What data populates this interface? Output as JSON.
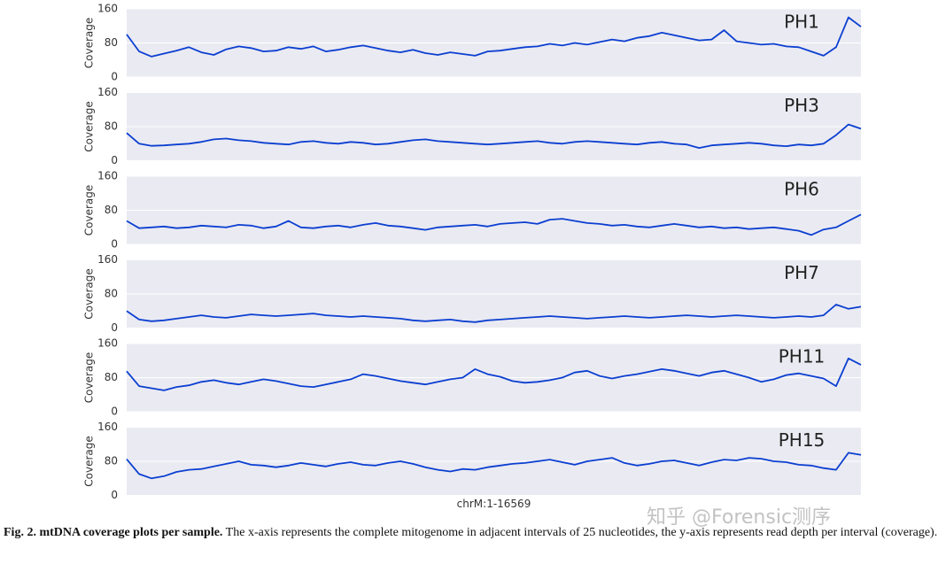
{
  "chart_data": [
    {
      "type": "line",
      "title": "PH1",
      "ylabel": "Coverage",
      "ylim": [
        0,
        160
      ],
      "yticks": [
        0,
        80,
        160
      ],
      "grid": true,
      "color": "#0b3fd1",
      "values": [
        100,
        60,
        48,
        55,
        62,
        70,
        58,
        52,
        65,
        72,
        68,
        60,
        62,
        70,
        66,
        72,
        60,
        64,
        70,
        74,
        68,
        62,
        58,
        64,
        56,
        52,
        58,
        54,
        50,
        60,
        62,
        66,
        70,
        72,
        78,
        74,
        80,
        76,
        82,
        88,
        84,
        92,
        96,
        104,
        98,
        92,
        86,
        88,
        110,
        84,
        80,
        76,
        78,
        72,
        70,
        60,
        50,
        70,
        140,
        118
      ]
    },
    {
      "type": "line",
      "title": "PH3",
      "ylabel": "Coverage",
      "ylim": [
        0,
        160
      ],
      "yticks": [
        0,
        80,
        160
      ],
      "grid": true,
      "color": "#0b3fd1",
      "values": [
        65,
        40,
        35,
        36,
        38,
        40,
        44,
        50,
        52,
        48,
        46,
        42,
        40,
        38,
        44,
        46,
        42,
        40,
        44,
        42,
        38,
        40,
        44,
        48,
        50,
        46,
        44,
        42,
        40,
        38,
        40,
        42,
        44,
        46,
        42,
        40,
        44,
        46,
        44,
        42,
        40,
        38,
        42,
        44,
        40,
        38,
        30,
        36,
        38,
        40,
        42,
        40,
        36,
        34,
        38,
        36,
        40,
        60,
        85,
        75
      ]
    },
    {
      "type": "line",
      "title": "PH6",
      "ylabel": "Coverage",
      "ylim": [
        0,
        160
      ],
      "yticks": [
        0,
        80,
        160
      ],
      "grid": true,
      "color": "#0b3fd1",
      "values": [
        55,
        38,
        40,
        42,
        38,
        40,
        44,
        42,
        40,
        46,
        44,
        38,
        42,
        55,
        40,
        38,
        42,
        44,
        40,
        46,
        50,
        44,
        42,
        38,
        34,
        40,
        42,
        44,
        46,
        42,
        48,
        50,
        52,
        48,
        58,
        60,
        55,
        50,
        48,
        44,
        46,
        42,
        40,
        44,
        48,
        44,
        40,
        42,
        38,
        40,
        36,
        38,
        40,
        36,
        32,
        22,
        35,
        40,
        55,
        70
      ]
    },
    {
      "type": "line",
      "title": "PH7",
      "ylabel": "Coverage",
      "ylim": [
        0,
        160
      ],
      "yticks": [
        0,
        80,
        160
      ],
      "grid": true,
      "color": "#0b3fd1",
      "values": [
        40,
        20,
        16,
        18,
        22,
        26,
        30,
        26,
        24,
        28,
        32,
        30,
        28,
        30,
        32,
        34,
        30,
        28,
        26,
        28,
        26,
        24,
        22,
        18,
        16,
        18,
        20,
        16,
        14,
        18,
        20,
        22,
        24,
        26,
        28,
        26,
        24,
        22,
        24,
        26,
        28,
        26,
        24,
        26,
        28,
        30,
        28,
        26,
        28,
        30,
        28,
        26,
        24,
        26,
        28,
        26,
        30,
        55,
        45,
        50
      ]
    },
    {
      "type": "line",
      "title": "PH11",
      "ylabel": "Coverage",
      "ylim": [
        0,
        160
      ],
      "yticks": [
        0,
        80,
        160
      ],
      "grid": true,
      "color": "#0b3fd1",
      "values": [
        95,
        60,
        55,
        50,
        58,
        62,
        70,
        74,
        68,
        64,
        70,
        76,
        72,
        66,
        60,
        58,
        64,
        70,
        76,
        88,
        84,
        78,
        72,
        68,
        64,
        70,
        76,
        80,
        100,
        88,
        82,
        72,
        68,
        70,
        74,
        80,
        92,
        96,
        84,
        78,
        84,
        88,
        94,
        100,
        96,
        90,
        84,
        92,
        96,
        88,
        80,
        70,
        76,
        86,
        90,
        84,
        78,
        60,
        125,
        110
      ]
    },
    {
      "type": "line",
      "title": "PH15",
      "ylabel": "Coverage",
      "ylim": [
        0,
        160
      ],
      "yticks": [
        0,
        80,
        160
      ],
      "grid": true,
      "color": "#0b3fd1",
      "xlabel": "chrM:1-16569",
      "values": [
        85,
        50,
        40,
        45,
        55,
        60,
        62,
        68,
        74,
        80,
        72,
        70,
        66,
        70,
        76,
        72,
        68,
        74,
        78,
        72,
        70,
        76,
        80,
        74,
        66,
        60,
        56,
        62,
        60,
        66,
        70,
        74,
        76,
        80,
        84,
        78,
        72,
        80,
        84,
        88,
        76,
        70,
        74,
        80,
        82,
        76,
        70,
        78,
        84,
        82,
        88,
        86,
        80,
        78,
        72,
        70,
        64,
        60,
        100,
        95
      ]
    }
  ],
  "caption": {
    "label": "Fig. 2.  mtDNA coverage plots per sample.",
    "text": " The x-axis represents the complete mitogenome in adjacent intervals of 25 nucleotides, the y-axis represents read depth per interval (coverage)."
  },
  "watermark": "知乎 @Forensic测序"
}
